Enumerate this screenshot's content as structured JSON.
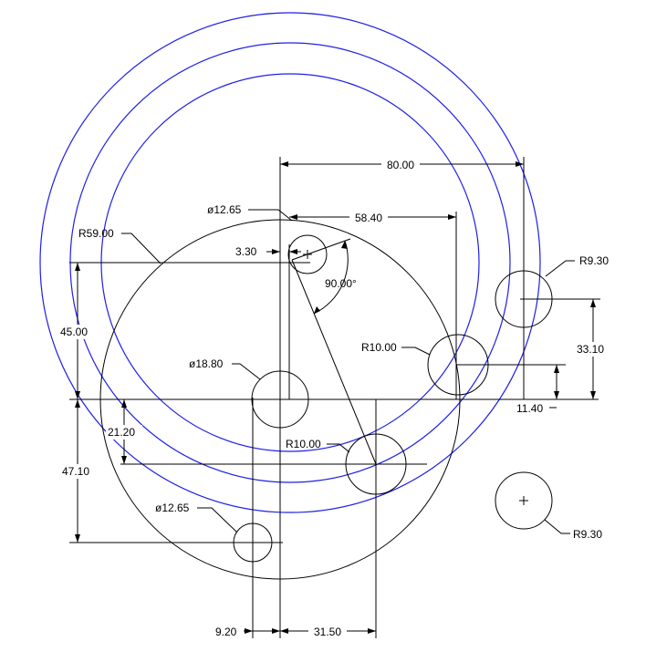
{
  "colors": {
    "construction_circles": "#1f1fe6",
    "geometry": "#000000",
    "background": "#ffffff"
  },
  "dimensions": {
    "d_80": "80.00",
    "d_58_40": "58.40",
    "d_3_30": "3.30",
    "phi_top_hole": "ø12.65",
    "r59": "R59.00",
    "angle_90": "90.00°",
    "d_45": "45.00",
    "phi_center": "ø18.80",
    "r10_right": "R10.00",
    "r9_30_top": "R9.30",
    "d_33_10": "33.10",
    "d_11_40": "11.40",
    "d_21_20": "21.20",
    "r10_low": "R10.00",
    "d_47_10": "47.10",
    "phi_bottom_hole": "ø12.65",
    "r9_30_bottom": "R9.30",
    "d_9_20": "9.20",
    "d_31_50": "31.50"
  }
}
